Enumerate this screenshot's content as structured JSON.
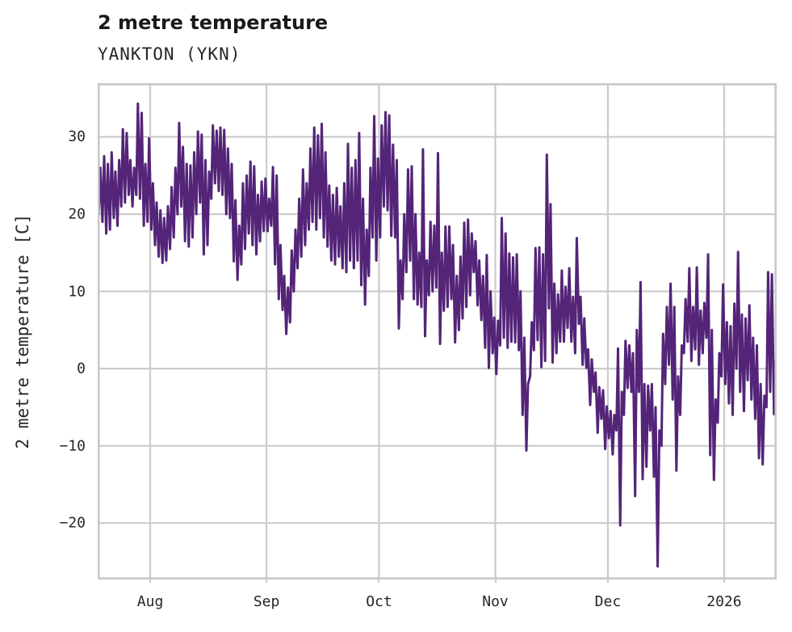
{
  "header": {
    "title": "2 metre temperature",
    "subtitle": "YANKTON (YKN)"
  },
  "chart_data": {
    "type": "line",
    "title": "2 metre temperature",
    "subtitle": "YANKTON (YKN)",
    "xlabel": "",
    "ylabel": "2 metre temperature [C]",
    "legend": "none",
    "grid": "on",
    "background": "#ffffff",
    "line_color": "#532478",
    "grid_color": "#cccccc",
    "spine_color": "#c8c8c8",
    "text_color": "#262626",
    "x_axis": {
      "tick_labels": [
        "Aug",
        "Sep",
        "Oct",
        "Nov",
        "Dec",
        "2026"
      ],
      "tick_day_offsets": [
        14,
        45,
        75,
        106,
        136,
        167
      ],
      "domain_days": [
        0,
        181
      ]
    },
    "y_axis": {
      "tick_values": [
        30,
        20,
        10,
        0,
        -10,
        -20
      ],
      "tick_labels": [
        "30",
        "20",
        "10",
        "0",
        "−10",
        "−20"
      ],
      "ylim": [
        -27.3,
        36.95
      ]
    },
    "series": [
      {
        "name": "2 metre temperature [C]",
        "sampling": "two points per day (daily min, daily max), day 0 at left edge",
        "start_value": 25.8,
        "end_value": -6.7,
        "daily_min_max": [
          [
            20.0,
            26.0
          ],
          [
            19.0,
            27.5
          ],
          [
            17.5,
            26.5
          ],
          [
            18.0,
            28.0
          ],
          [
            19.5,
            25.5
          ],
          [
            18.5,
            27.0
          ],
          [
            21.0,
            31.0
          ],
          [
            21.5,
            30.5
          ],
          [
            22.5,
            27.0
          ],
          [
            21.0,
            26.0
          ],
          [
            22.5,
            34.3
          ],
          [
            22.0,
            33.1
          ],
          [
            18.5,
            26.5
          ],
          [
            19.0,
            29.8
          ],
          [
            18.0,
            24.0
          ],
          [
            16.0,
            21.5
          ],
          [
            14.5,
            20.5
          ],
          [
            13.7,
            19.5
          ],
          [
            14.0,
            21.0
          ],
          [
            15.5,
            23.5
          ],
          [
            17.0,
            26.0
          ],
          [
            20.0,
            31.8
          ],
          [
            21.0,
            28.7
          ],
          [
            16.5,
            26.5
          ],
          [
            15.8,
            26.3
          ],
          [
            17.0,
            28.0
          ],
          [
            20.0,
            30.7
          ],
          [
            21.5,
            30.3
          ],
          [
            14.8,
            27.0
          ],
          [
            16.0,
            25.5
          ],
          [
            22.0,
            31.5
          ],
          [
            24.0,
            30.8
          ],
          [
            23.0,
            31.2
          ],
          [
            22.5,
            30.9
          ],
          [
            20.0,
            28.5
          ],
          [
            19.5,
            26.5
          ],
          [
            13.9,
            21.8
          ],
          [
            11.5,
            18.5
          ],
          [
            13.5,
            24.0
          ],
          [
            15.5,
            25.0
          ],
          [
            17.5,
            26.8
          ],
          [
            16.0,
            26.2
          ],
          [
            14.8,
            22.5
          ],
          [
            16.5,
            24.2
          ],
          [
            17.8,
            24.6
          ],
          [
            17.8,
            22.0
          ],
          [
            18.5,
            26.1
          ],
          [
            13.5,
            25.0
          ],
          [
            9.0,
            16.0
          ],
          [
            7.6,
            12.0
          ],
          [
            4.5,
            10.5
          ],
          [
            6.0,
            15.3
          ],
          [
            10.0,
            18.0
          ],
          [
            13.0,
            22.0
          ],
          [
            14.5,
            25.8
          ],
          [
            16.0,
            24.0
          ],
          [
            18.0,
            28.5
          ],
          [
            19.0,
            31.2
          ],
          [
            18.0,
            30.2
          ],
          [
            19.5,
            31.7
          ],
          [
            17.0,
            28.0
          ],
          [
            15.8,
            23.7
          ],
          [
            14.0,
            22.5
          ],
          [
            13.5,
            23.4
          ],
          [
            14.5,
            21.0
          ],
          [
            13.0,
            24.0
          ],
          [
            12.5,
            29.1
          ],
          [
            14.0,
            26.0
          ],
          [
            13.0,
            27.0
          ],
          [
            14.0,
            30.5
          ],
          [
            10.8,
            22.0
          ],
          [
            8.3,
            18.0
          ],
          [
            12.0,
            26.0
          ],
          [
            17.0,
            32.7
          ],
          [
            14.0,
            27.2
          ],
          [
            17.0,
            31.5
          ],
          [
            21.0,
            33.2
          ],
          [
            20.5,
            32.8
          ],
          [
            17.2,
            29.0
          ],
          [
            17.0,
            27.0
          ],
          [
            5.2,
            14.0
          ],
          [
            9.0,
            20.0
          ],
          [
            12.5,
            25.8
          ],
          [
            14.0,
            26.2
          ],
          [
            9.0,
            20.0
          ],
          [
            8.3,
            15.0
          ],
          [
            8.0,
            28.4
          ],
          [
            4.2,
            14.0
          ],
          [
            9.5,
            19.0
          ],
          [
            10.0,
            18.5
          ],
          [
            10.5,
            27.9
          ],
          [
            3.2,
            15.0
          ],
          [
            7.5,
            18.4
          ],
          [
            8.0,
            18.4
          ],
          [
            9.0,
            16.0
          ],
          [
            3.4,
            12.0
          ],
          [
            5.0,
            14.5
          ],
          [
            6.5,
            18.9
          ],
          [
            8.0,
            19.3
          ],
          [
            9.5,
            17.5
          ],
          [
            12.5,
            16.5
          ],
          [
            8.2,
            14.0
          ],
          [
            6.3,
            12.0
          ],
          [
            2.7,
            14.7
          ],
          [
            0.1,
            10.0
          ],
          [
            2.0,
            6.6
          ],
          [
            -0.7,
            6.2
          ],
          [
            3.0,
            19.5
          ],
          [
            4.0,
            17.5
          ],
          [
            2.7,
            14.9
          ],
          [
            3.5,
            14.4
          ],
          [
            3.4,
            14.8
          ],
          [
            2.4,
            10.0
          ],
          [
            -6.0,
            4.0
          ],
          [
            -10.6,
            -2.0
          ],
          [
            -1.0,
            6.0
          ],
          [
            2.4,
            15.6
          ],
          [
            3.7,
            15.7
          ],
          [
            0.2,
            14.8
          ],
          [
            1.0,
            27.7
          ],
          [
            7.8,
            21.3
          ],
          [
            0.8,
            11.0
          ],
          [
            2.0,
            9.6
          ],
          [
            3.5,
            12.7
          ],
          [
            3.5,
            10.6
          ],
          [
            5.3,
            13.0
          ],
          [
            3.5,
            9.3
          ],
          [
            2.0,
            16.9
          ],
          [
            5.8,
            9.3
          ],
          [
            0.5,
            6.5
          ],
          [
            0.1,
            2.5
          ],
          [
            -4.7,
            1.2
          ],
          [
            -3.0,
            -0.5
          ],
          [
            -8.3,
            -2.4
          ],
          [
            -6.5,
            -2.8
          ],
          [
            -10.4,
            -4.9
          ],
          [
            -9.0,
            -5.5
          ],
          [
            -11.1,
            -6.0
          ],
          [
            -8.0,
            2.6
          ],
          [
            -20.3,
            -3.0
          ],
          [
            -6.0,
            3.6
          ],
          [
            -2.5,
            3.0
          ],
          [
            -3.0,
            2.0
          ],
          [
            -16.5,
            5.0
          ],
          [
            -3.0,
            11.2
          ],
          [
            -14.3,
            -2.0
          ],
          [
            -12.7,
            -2.2
          ],
          [
            -8.0,
            -2.0
          ],
          [
            -14.0,
            -5.0
          ],
          [
            -25.6,
            -8.0
          ],
          [
            -10.0,
            4.5
          ],
          [
            -2.0,
            8.0
          ],
          [
            0.5,
            11.0
          ],
          [
            -4.0,
            8.0
          ],
          [
            -13.2,
            -1.0
          ],
          [
            -6.0,
            3.0
          ],
          [
            2.0,
            9.0
          ],
          [
            3.5,
            13.0
          ],
          [
            1.0,
            8.0
          ],
          [
            2.5,
            13.1
          ],
          [
            0.5,
            7.5
          ],
          [
            2.0,
            8.5
          ],
          [
            4.0,
            14.8
          ],
          [
            -11.2,
            5.0
          ],
          [
            -14.4,
            -4.0
          ],
          [
            -7.0,
            2.0
          ],
          [
            -1.0,
            10.9
          ],
          [
            -2.0,
            6.0
          ],
          [
            -4.5,
            5.5
          ],
          [
            -6.0,
            8.4
          ],
          [
            0.0,
            15.1
          ],
          [
            -3.0,
            7.0
          ],
          [
            -5.5,
            6.5
          ],
          [
            -1.5,
            8.2
          ],
          [
            -4.0,
            4.0
          ],
          [
            -6.5,
            3.0
          ],
          [
            -11.6,
            -2.0
          ],
          [
            -12.4,
            -3.5
          ],
          [
            -5.0,
            12.5
          ],
          [
            -3.0,
            12.2
          ],
          [
            -5.9,
            1.0
          ]
        ]
      }
    ]
  }
}
